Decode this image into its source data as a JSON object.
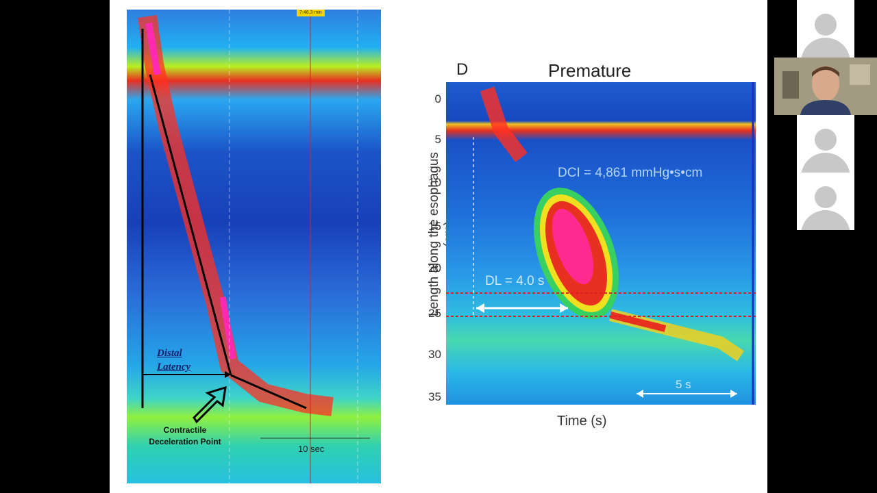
{
  "plot1": {
    "timer_badge": "7:46.3 min",
    "distal_latency": "Distal Latency",
    "contractile_point": "Contractile Deceleration Point",
    "scale": "10 sec"
  },
  "figure": {
    "panel_letter": "D",
    "title": "Premature",
    "ylabel": "Length along the esophagus (cm)",
    "yticks": [
      "0",
      "5",
      "10",
      "15",
      "20",
      "25",
      "30",
      "35"
    ],
    "xlabel": "Time (s)",
    "dci": "DCI = 4,861 mmHg•s•cm",
    "dl": "DL = 4.0 s",
    "scale": "5 s"
  },
  "participants": [
    {
      "kind": "avatar",
      "icon": "person-icon"
    },
    {
      "kind": "video"
    },
    {
      "kind": "avatar",
      "icon": "person-icon"
    },
    {
      "kind": "avatar",
      "icon": "person-icon"
    }
  ]
}
